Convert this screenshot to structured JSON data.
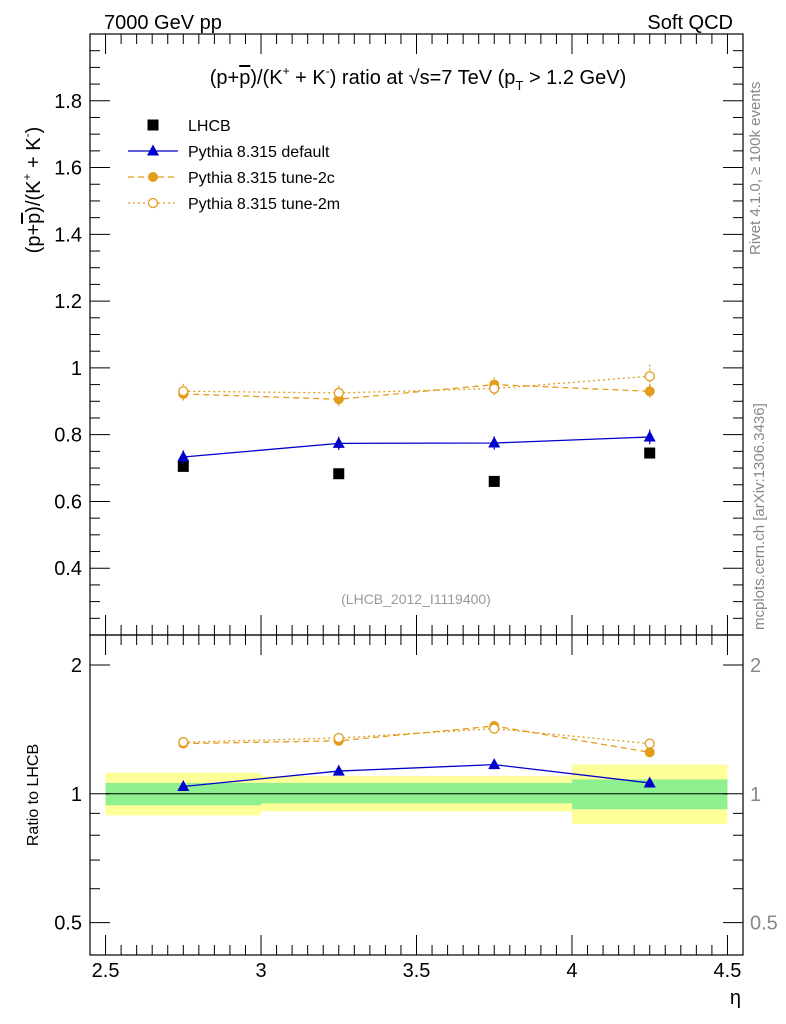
{
  "header": {
    "left": "7000 GeV pp",
    "right": "Soft QCD"
  },
  "side_text": {
    "rivet": "Rivet 4.1.0, ≥ 100k events",
    "mcplots": "mcplots.cern.ch [arXiv:1306.3436]"
  },
  "chart_data": [
    {
      "type": "scatter",
      "panel": "main",
      "title": "(p+p̄)/(K⁺ + K⁻) ratio at √s=7 TeV (p_T > 1.2 GeV)",
      "title_parts": {
        "pre": "(p+",
        "pbar": "p",
        "mid1": ")/(K",
        "plus": "+",
        "mid2": " + K",
        "minus": "-",
        "mid3": ") ratio at ",
        "sqrt": "√",
        "mid4": "s=7 TeV (p",
        "sub": "T",
        "post": " > 1.2 GeV)"
      },
      "ylabel": "(p+p̄)/(K⁺ + K⁻)",
      "ylabel_parts": {
        "pre": "(p+",
        "pbar": "p",
        "mid1": ")/(K",
        "plus": "+",
        "mid2": " + K",
        "minus": "-",
        "post": ")"
      },
      "xlim": [
        2.45,
        4.55
      ],
      "ylim": [
        0.2,
        2.0
      ],
      "yticks": [
        0.4,
        0.6,
        0.8,
        1.0,
        1.2,
        1.4,
        1.6,
        1.8
      ],
      "ytick_labels": [
        "0.4",
        "0.6",
        "0.8",
        "1",
        "1.2",
        "1.4",
        "1.6",
        "1.8"
      ],
      "watermark": "(LHCB_2012_I1119400)",
      "legend_position": "top-left",
      "x": [
        2.75,
        3.25,
        3.75,
        4.25
      ],
      "x_bins": [
        [
          2.5,
          3.0
        ],
        [
          3.0,
          3.5
        ],
        [
          3.5,
          4.0
        ],
        [
          4.0,
          4.5
        ]
      ],
      "series": [
        {
          "name": "LHCB",
          "values": [
            0.705,
            0.683,
            0.66,
            0.745
          ],
          "errors": [
            0.0,
            0.0,
            0.0,
            0.0
          ],
          "color": "#000000",
          "marker": "square",
          "line": "none"
        },
        {
          "name": "Pythia 8.315 default",
          "values": [
            0.733,
            0.774,
            0.775,
            0.793
          ],
          "errors": [
            0.02,
            0.02,
            0.02,
            0.022
          ],
          "color": "#0000cc",
          "marker": "triangle",
          "line": "solid"
        },
        {
          "name": "Pythia 8.315 tune-2c",
          "values": [
            0.922,
            0.906,
            0.95,
            0.93
          ],
          "errors": [
            0.022,
            0.022,
            0.022,
            0.022
          ],
          "color": "#e39c1c",
          "marker": "circle",
          "line": "dashed"
        },
        {
          "name": "Pythia 8.315 tune-2m",
          "values": [
            0.93,
            0.925,
            0.938,
            0.975
          ],
          "errors": [
            0.022,
            0.022,
            0.022,
            0.035
          ],
          "color": "#e39c1c",
          "marker": "open-circle",
          "line": "dotted"
        }
      ]
    },
    {
      "type": "scatter",
      "panel": "ratio",
      "xlabel": "η",
      "ylabel": "Ratio to LHCB",
      "yscale": "log",
      "xlim": [
        2.45,
        4.55
      ],
      "ylim": [
        0.42,
        2.35
      ],
      "xticks": [
        2.5,
        3.0,
        3.5,
        4.0,
        4.5
      ],
      "xtick_labels": [
        "2.5",
        "3",
        "3.5",
        "4",
        "4.5"
      ],
      "yticks": [
        0.5,
        1,
        2
      ],
      "ytick_labels": [
        "0.5",
        "1",
        "2"
      ],
      "x": [
        2.75,
        3.25,
        3.75,
        4.25
      ],
      "x_bins": [
        [
          2.5,
          3.0
        ],
        [
          3.0,
          3.5
        ],
        [
          3.5,
          4.0
        ],
        [
          4.0,
          4.5
        ]
      ],
      "bands": {
        "stat": {
          "lo": [
            0.94,
            0.95,
            0.95,
            0.92
          ],
          "hi": [
            1.06,
            1.06,
            1.06,
            1.08
          ],
          "color": "#8ef08e"
        },
        "total": {
          "lo": [
            0.89,
            0.91,
            0.91,
            0.85
          ],
          "hi": [
            1.12,
            1.1,
            1.1,
            1.17
          ],
          "color": "#ffff99"
        }
      },
      "series": [
        {
          "name": "Pythia 8.315 default",
          "values": [
            1.04,
            1.13,
            1.17,
            1.06
          ],
          "errors": [
            0.02,
            0.02,
            0.02,
            0.02
          ],
          "color": "#0000cc",
          "marker": "triangle",
          "line": "solid"
        },
        {
          "name": "Pythia 8.315 tune-2c",
          "values": [
            1.31,
            1.33,
            1.44,
            1.25
          ],
          "errors": [
            0.03,
            0.03,
            0.03,
            0.03
          ],
          "color": "#e39c1c",
          "marker": "circle",
          "line": "dashed"
        },
        {
          "name": "Pythia 8.315 tune-2m",
          "values": [
            1.32,
            1.35,
            1.42,
            1.31
          ],
          "errors": [
            0.03,
            0.03,
            0.03,
            0.03
          ],
          "color": "#e39c1c",
          "marker": "open-circle",
          "line": "dotted"
        }
      ]
    }
  ]
}
